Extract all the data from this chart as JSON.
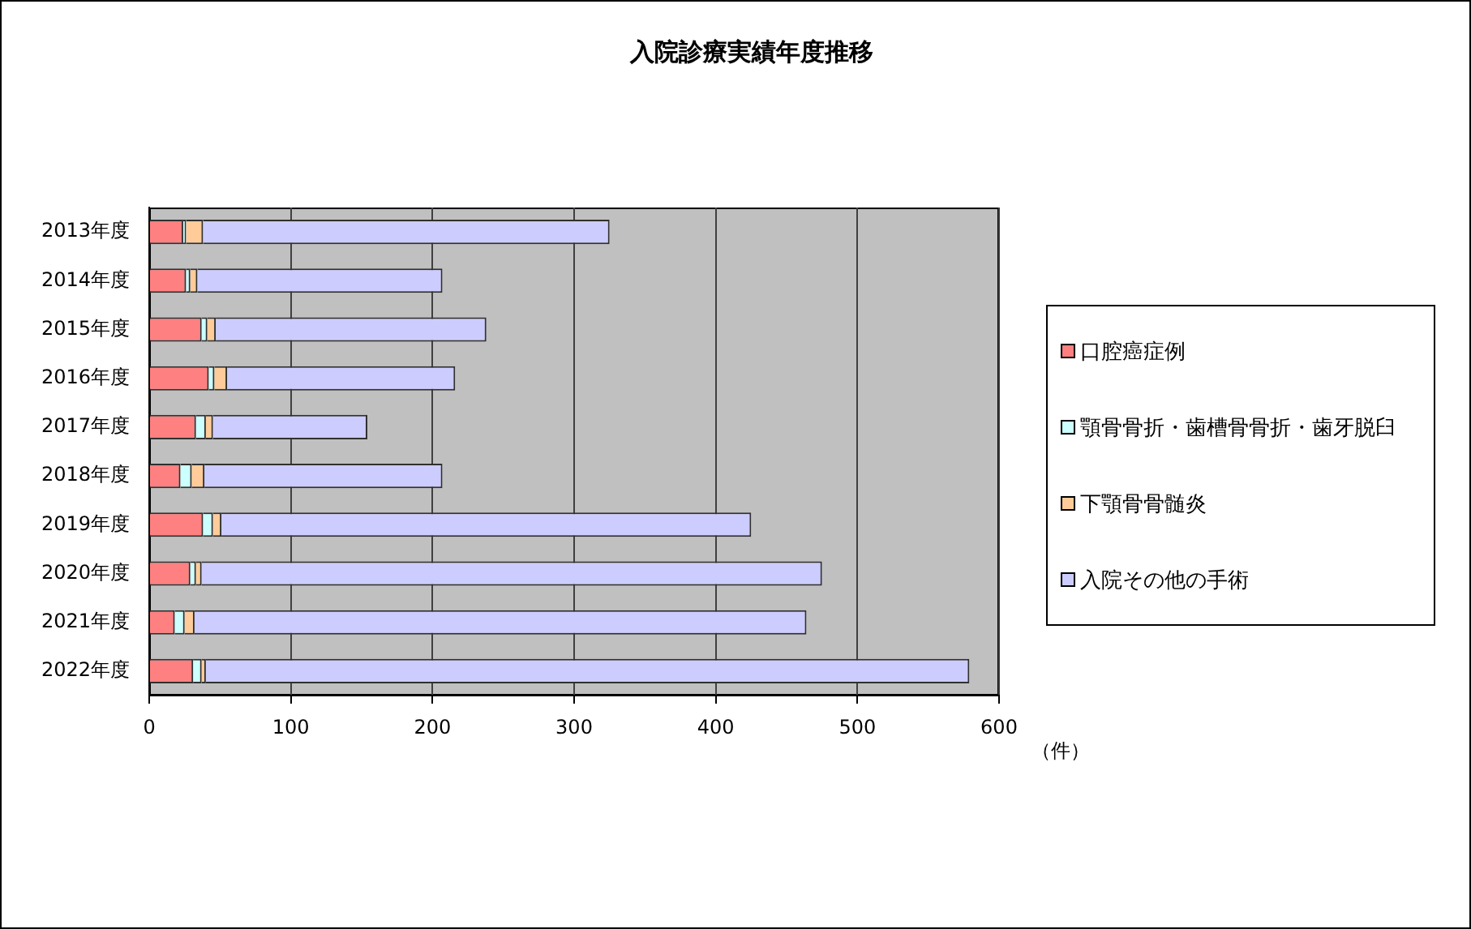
{
  "chart_data": {
    "type": "bar",
    "orientation": "horizontal",
    "stacked": true,
    "title": "入院診療実績年度推移",
    "xlabel": "（件）",
    "categories": [
      "2013年度",
      "2014年度",
      "2015年度",
      "2016年度",
      "2017年度",
      "2018年度",
      "2019年度",
      "2020年度",
      "2021年度",
      "2022年度"
    ],
    "series": [
      {
        "name": "口腔癌症例",
        "color": "#ff8080",
        "values": [
          24,
          26,
          37,
          42,
          33,
          22,
          38,
          29,
          18,
          31
        ]
      },
      {
        "name": "顎骨骨折・歯槽骨骨折・歯牙脱臼",
        "color": "#ccffff",
        "values": [
          2,
          3,
          4,
          4,
          7,
          8,
          7,
          4,
          7,
          6
        ]
      },
      {
        "name": "下顎骨骨髄炎",
        "color": "#ffcc99",
        "values": [
          12,
          5,
          6,
          9,
          5,
          9,
          6,
          4,
          7,
          3
        ]
      },
      {
        "name": "入院その他の手術",
        "color": "#ccccff",
        "values": [
          287,
          173,
          191,
          161,
          109,
          168,
          374,
          438,
          432,
          539
        ]
      }
    ],
    "xlim": [
      0,
      600
    ],
    "xticks": [
      0,
      100,
      200,
      300,
      400,
      500,
      600
    ],
    "grid": "x",
    "legend": "right"
  }
}
